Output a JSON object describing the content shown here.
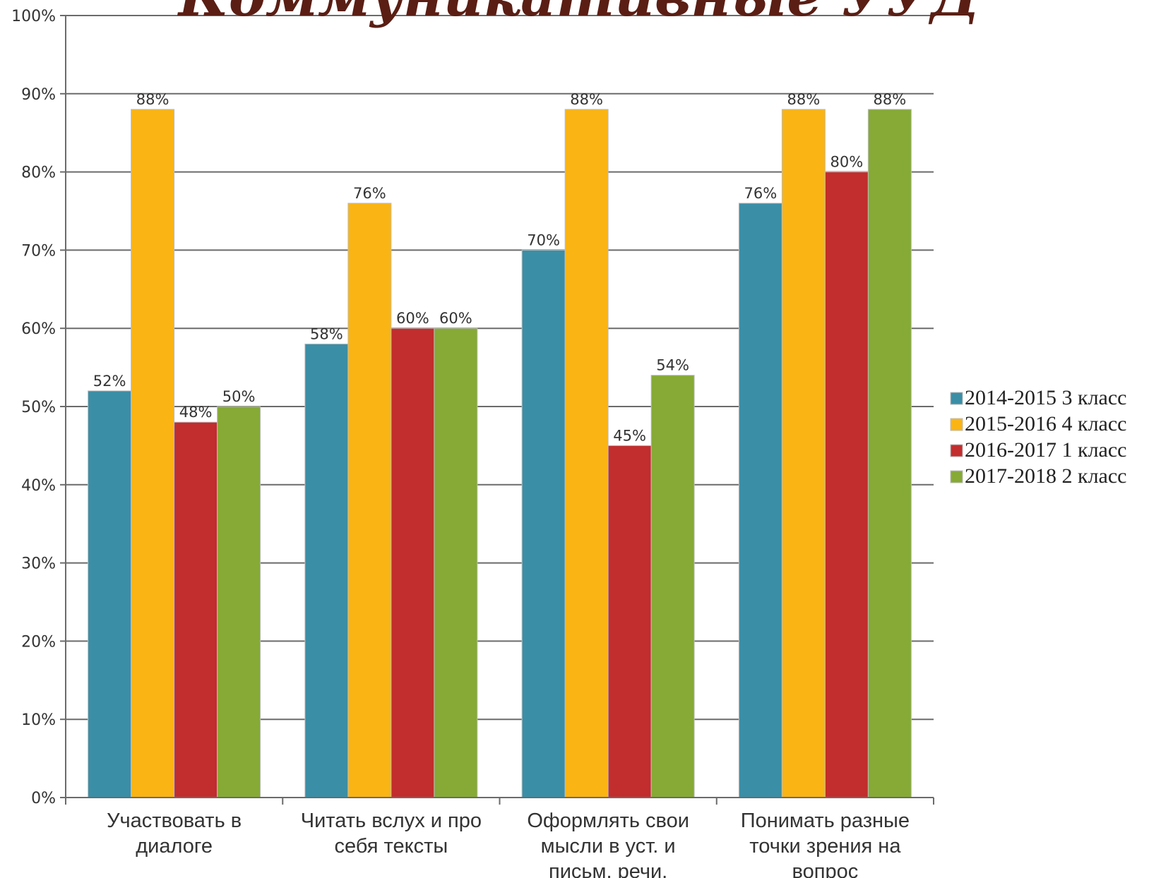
{
  "chart_data": {
    "type": "bar",
    "title": "Коммуникативные УУД",
    "ylim": [
      0,
      100
    ],
    "ytick_step": 10,
    "ytick_format": "{v}%",
    "grid": true,
    "legend_position": "right",
    "categories": [
      [
        "Участвовать в",
        "диалоге"
      ],
      [
        "Читать вслух и про",
        "себя тексты"
      ],
      [
        "Оформлять свои",
        "мысли в уст. и",
        "письм. речи."
      ],
      [
        "Понимать разные",
        "точки зрения на",
        "вопрос"
      ]
    ],
    "series": [
      {
        "name": "2014-2015 3 класс",
        "color": "#3a8ea6",
        "values": [
          52,
          58,
          70,
          76
        ]
      },
      {
        "name": "2015-2016 4 класс",
        "color": "#fab413",
        "values": [
          88,
          76,
          88,
          88
        ]
      },
      {
        "name": "2016-2017 1 класс",
        "color": "#c22d2d",
        "values": [
          48,
          60,
          45,
          80
        ]
      },
      {
        "name": "2017-2018 2 класс",
        "color": "#86aa35",
        "values": [
          50,
          60,
          54,
          88
        ]
      }
    ],
    "value_label_format": "{v}%"
  }
}
